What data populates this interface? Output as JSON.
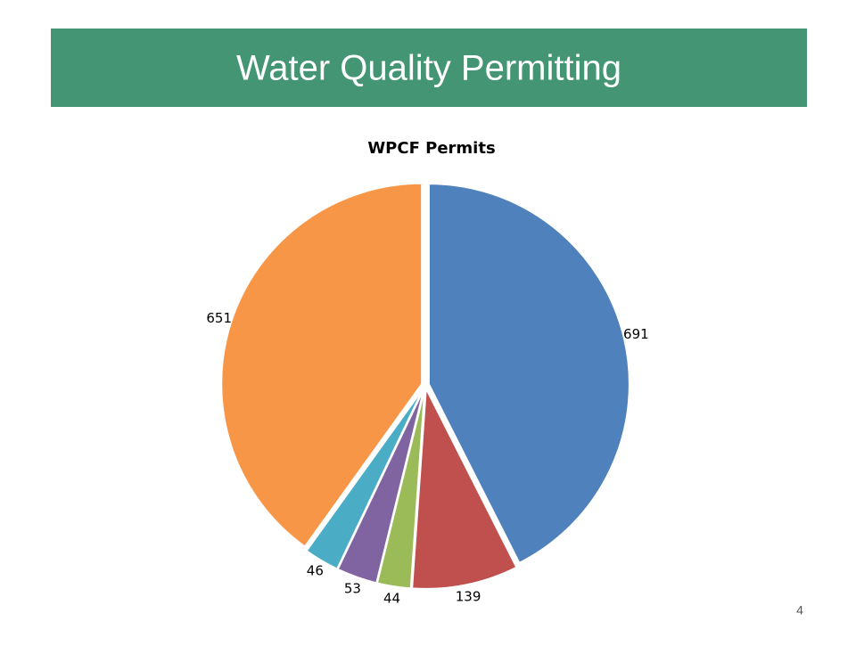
{
  "slide": {
    "title": "Water Quality Permitting",
    "page_number": 4
  },
  "chart_data": {
    "type": "pie",
    "title": "WPCF Permits",
    "values": [
      691,
      139,
      44,
      53,
      46,
      651
    ],
    "colors": [
      "#4f81bd",
      "#c0504d",
      "#9bbb59",
      "#8064a2",
      "#4bacc6",
      "#f79646"
    ],
    "start": "top",
    "direction": "clockwise"
  }
}
